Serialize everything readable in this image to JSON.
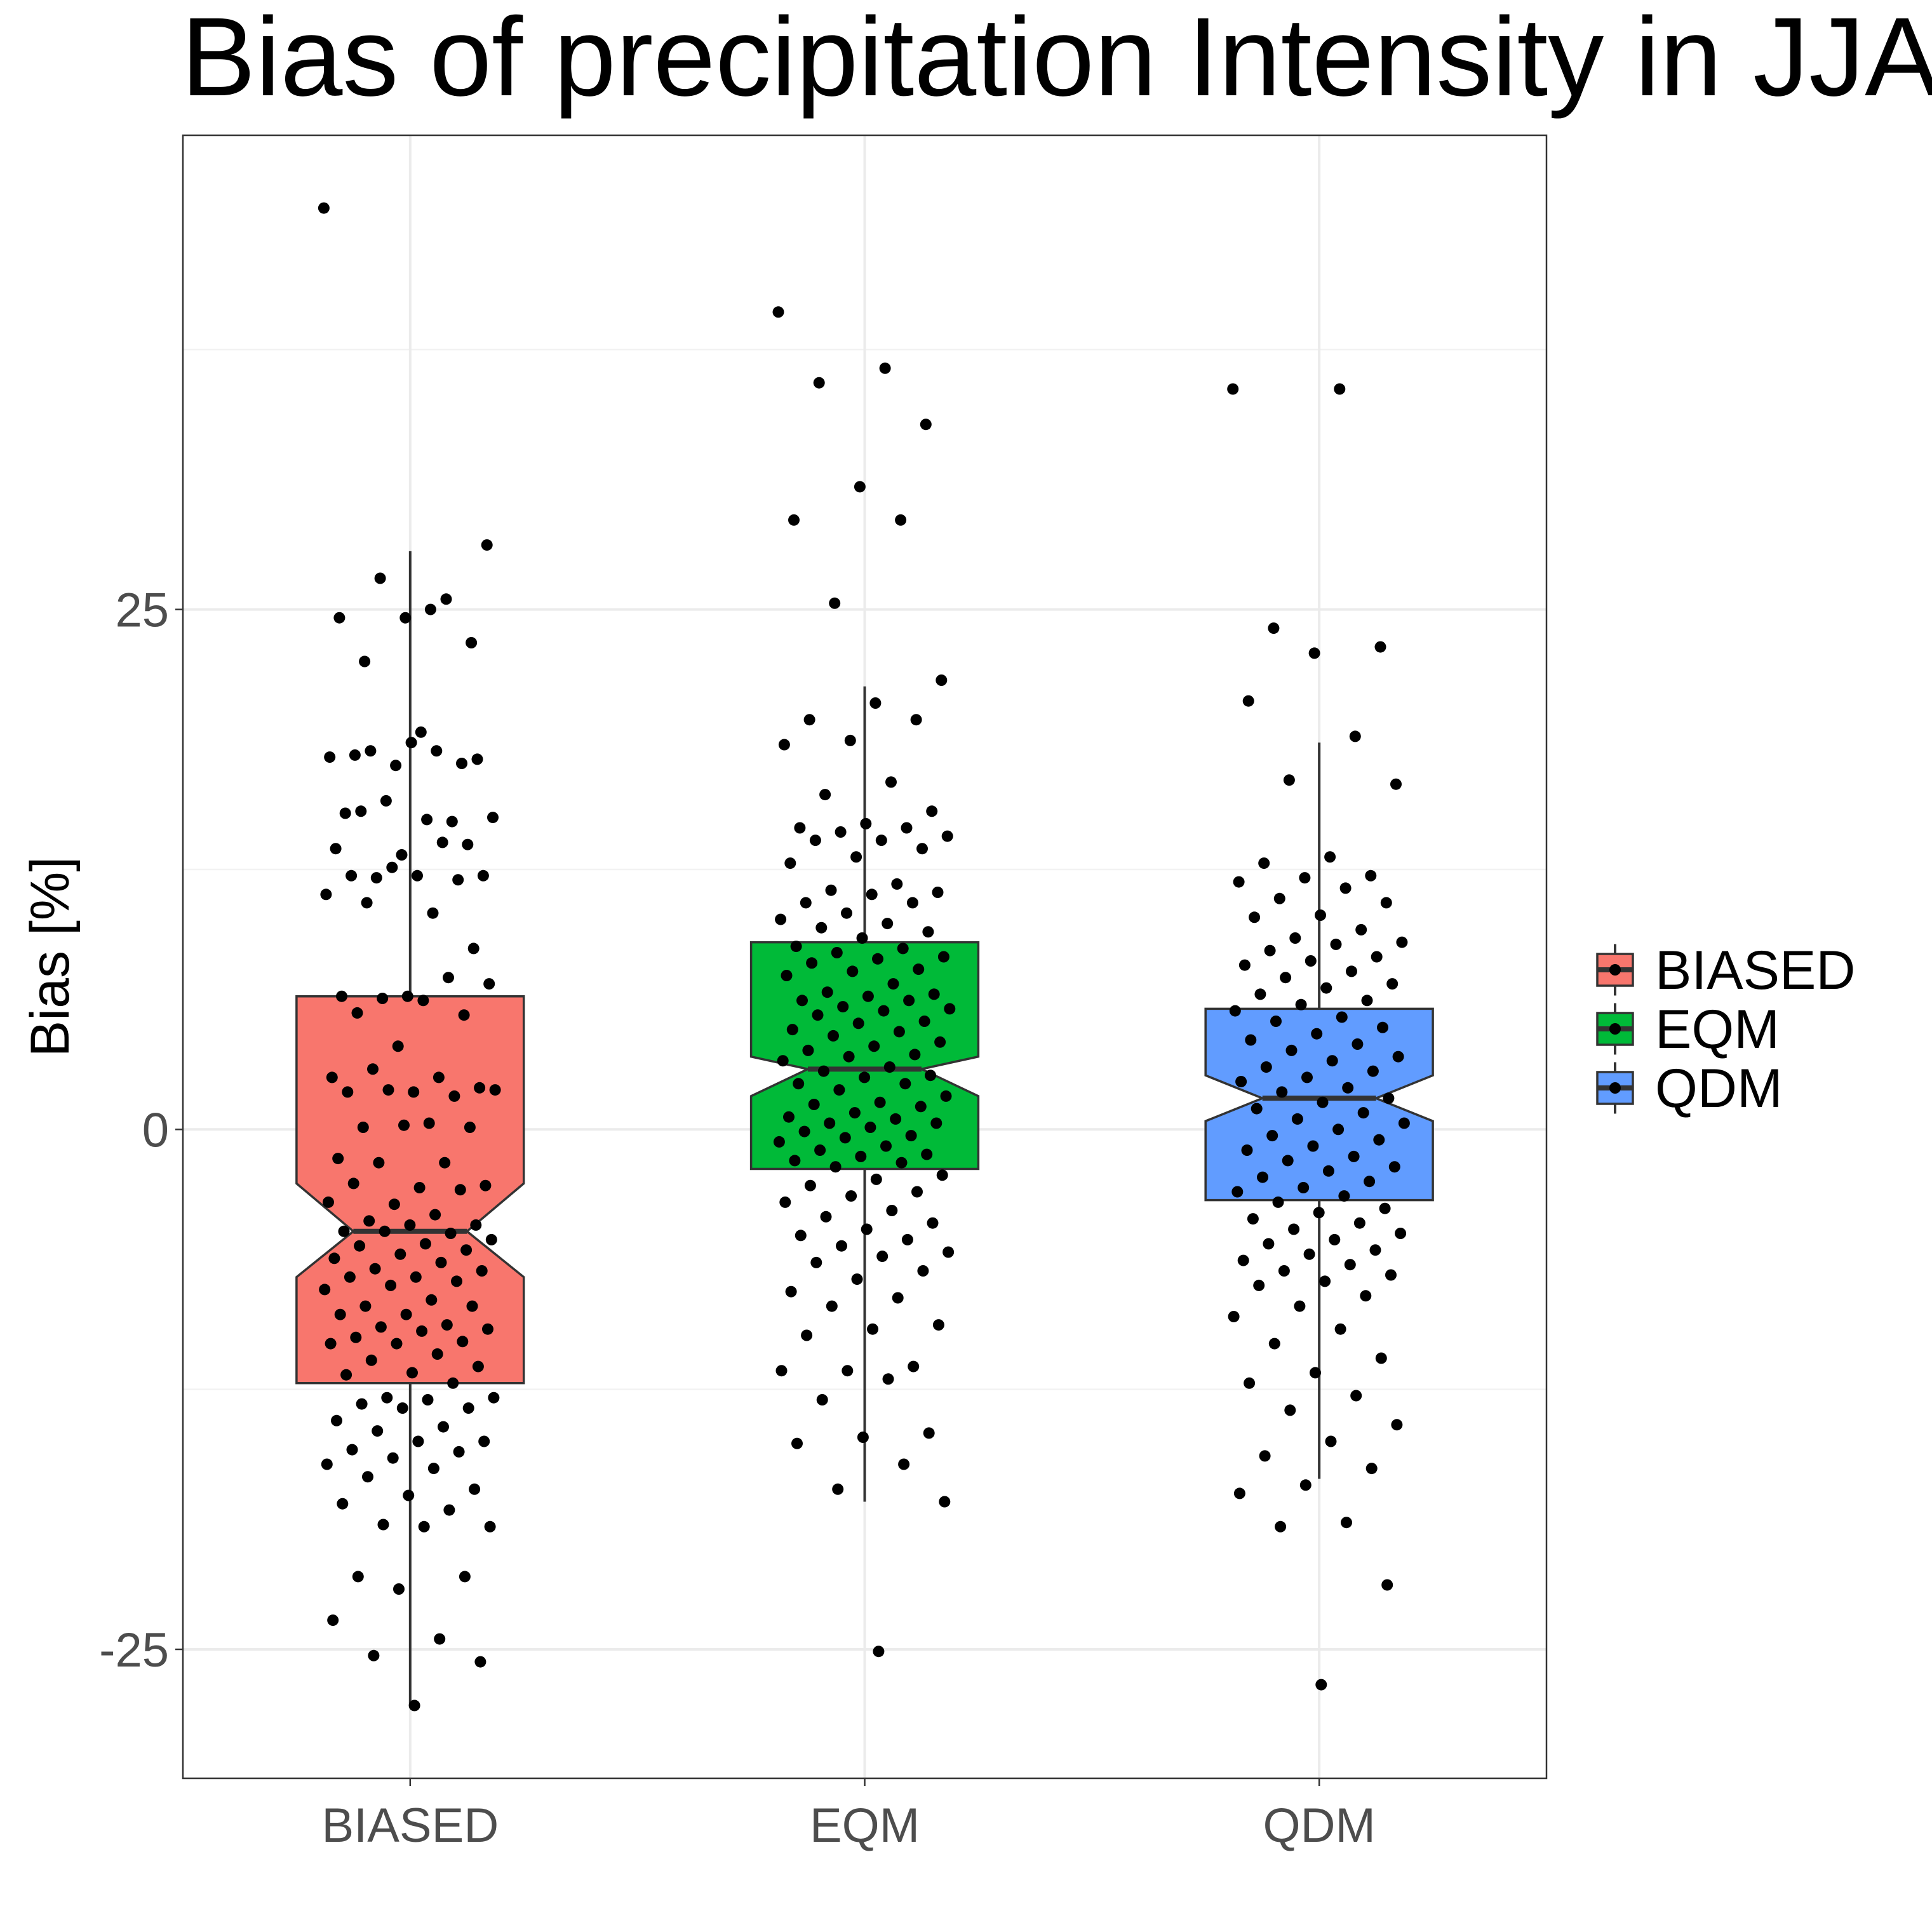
{
  "chart_data": {
    "type": "boxplot",
    "title": "Bias of precipitation Intensity in JJA",
    "xlabel": "",
    "ylabel": "Bias [%]",
    "ylim": [
      -31.2,
      47.8
    ],
    "yticks": [
      -25,
      0,
      25
    ],
    "ytick_labels": [
      "-25",
      "0",
      "25"
    ],
    "categories": [
      "BIASED",
      "EQM",
      "QDM"
    ],
    "notched": true,
    "grid": true,
    "legend": {
      "position": "right",
      "entries": [
        {
          "label": "BIASED",
          "color": "#F8766D"
        },
        {
          "label": "EQM",
          "color": "#00BA38"
        },
        {
          "label": "QDM",
          "color": "#619CFF"
        }
      ]
    },
    "boxes": [
      {
        "name": "BIASED",
        "color": "#F8766D",
        "whisker_low": -27.7,
        "q1": -12.2,
        "notch_low": -7.1,
        "median": -4.9,
        "notch_high": -2.6,
        "q3": 6.4,
        "whisker_high": 27.8,
        "points": [
          44.3,
          25.0,
          22.5,
          23.4,
          24.6,
          24.6,
          25.5,
          26.5,
          28.1,
          19.1,
          18.0,
          17.6,
          17.5,
          17.9,
          18.2,
          18.2,
          17.8,
          18.6,
          15.2,
          14.8,
          15.8,
          15.0,
          14.9,
          15.3,
          13.7,
          13.2,
          13.5,
          13.8,
          12.1,
          12.2,
          12.2,
          12.2,
          12.0,
          12.6,
          11.3,
          10.4,
          10.9,
          8.7,
          6.4,
          6.4,
          7.3,
          6.3,
          7.0,
          6.2,
          5.6,
          5.5,
          4.0,
          2.5,
          2.5,
          2.9,
          2.0,
          1.8,
          1.8,
          1.6,
          1.9,
          1.9,
          0.3,
          0.1,
          0.1,
          0.2,
          -1.4,
          -1.6,
          -1.6,
          -2.7,
          -2.8,
          -2.6,
          -2.9,
          -3.6,
          -3.5,
          -4.1,
          -4.4,
          -4.6,
          -4.6,
          -4.9,
          -5.0,
          -4.9,
          -5.3,
          -5.5,
          -5.6,
          -5.8,
          -6.0,
          -6.2,
          -6.4,
          -6.7,
          -6.8,
          -7.1,
          -7.1,
          -7.3,
          -7.5,
          -7.7,
          -8.2,
          -8.5,
          -8.5,
          -8.9,
          -8.9,
          -9.4,
          -9.5,
          -9.6,
          -9.7,
          -10.0,
          -10.2,
          -10.3,
          -10.3,
          -10.8,
          -11.1,
          -11.4,
          -11.7,
          -11.8,
          -12.2,
          -12.9,
          -12.9,
          -13.0,
          -13.2,
          -13.4,
          -13.4,
          -14.0,
          -14.3,
          -14.5,
          -15.0,
          -15.0,
          -15.4,
          -15.5,
          -15.8,
          -16.1,
          -16.3,
          -16.7,
          -17.3,
          -17.6,
          -18.0,
          -18.3,
          -19.0,
          -19.1,
          -19.1,
          -21.5,
          -21.5,
          -22.1,
          -23.6,
          -24.5,
          -25.3,
          -25.6,
          -27.7
        ]
      },
      {
        "name": "EQM",
        "color": "#00BA38",
        "whisker_low": -17.9,
        "q1": -1.9,
        "notch_low": 1.6,
        "median": 2.9,
        "notch_high": 3.5,
        "q3": 9.0,
        "whisker_high": 21.3,
        "points": [
          39.3,
          36.6,
          35.9,
          33.9,
          30.9,
          29.3,
          29.3,
          25.3,
          21.6,
          20.5,
          19.7,
          19.7,
          18.7,
          18.5,
          16.7,
          16.1,
          15.3,
          14.7,
          14.5,
          14.5,
          14.3,
          14.1,
          13.9,
          13.9,
          13.5,
          13.1,
          12.8,
          11.8,
          11.5,
          11.4,
          11.3,
          10.9,
          10.9,
          10.4,
          10.1,
          9.9,
          9.7,
          9.5,
          9.2,
          8.8,
          8.7,
          8.5,
          8.3,
          8.2,
          8.0,
          7.7,
          7.6,
          7.4,
          7.0,
          6.6,
          6.5,
          6.4,
          6.2,
          6.2,
          5.9,
          5.8,
          5.7,
          5.5,
          5.2,
          5.1,
          4.8,
          4.7,
          4.5,
          4.2,
          4.0,
          3.8,
          3.6,
          3.5,
          3.3,
          3.0,
          2.8,
          2.6,
          2.5,
          2.2,
          2.2,
          1.9,
          1.6,
          1.3,
          1.2,
          1.1,
          0.8,
          0.6,
          0.5,
          0.3,
          0.3,
          0.1,
          -0.1,
          -0.3,
          -0.4,
          -0.6,
          -0.8,
          -1.0,
          -1.2,
          -1.3,
          -1.5,
          -1.6,
          -1.8,
          -2.2,
          -2.4,
          -2.7,
          -3.0,
          -3.2,
          -3.5,
          -3.9,
          -4.2,
          -4.5,
          -4.8,
          -5.1,
          -5.3,
          -5.6,
          -5.9,
          -6.1,
          -6.4,
          -6.8,
          -7.2,
          -7.8,
          -8.1,
          -8.5,
          -9.4,
          -9.6,
          -9.9,
          -11.4,
          -11.6,
          -11.6,
          -12.0,
          -13.0,
          -14.6,
          -14.8,
          -15.1,
          -16.1,
          -17.3,
          -17.9,
          -25.1
        ]
      },
      {
        "name": "QDM",
        "color": "#619CFF",
        "whisker_low": -16.8,
        "q1": -3.4,
        "notch_low": 0.4,
        "median": 1.5,
        "notch_high": 2.6,
        "q3": 5.8,
        "whisker_high": 18.6,
        "points": [
          35.6,
          35.6,
          24.1,
          23.2,
          22.9,
          20.6,
          18.9,
          16.8,
          16.6,
          13.1,
          12.8,
          12.2,
          12.1,
          11.9,
          11.6,
          11.1,
          10.9,
          10.3,
          10.2,
          9.6,
          9.2,
          9.0,
          8.9,
          8.6,
          8.3,
          8.1,
          7.9,
          7.6,
          7.3,
          7.0,
          6.8,
          6.5,
          6.2,
          6.0,
          5.7,
          5.4,
          5.2,
          4.9,
          4.6,
          4.3,
          4.1,
          3.8,
          3.5,
          3.3,
          3.0,
          2.8,
          2.5,
          2.3,
          2.0,
          1.8,
          1.5,
          1.3,
          1.0,
          0.8,
          0.5,
          0.3,
          0.0,
          -0.3,
          -0.5,
          -0.8,
          -1.0,
          -1.3,
          -1.5,
          -1.8,
          -2.0,
          -2.3,
          -2.5,
          -2.8,
          -3.0,
          -3.2,
          -3.5,
          -3.8,
          -4.0,
          -4.3,
          -4.5,
          -4.8,
          -5.0,
          -5.3,
          -5.5,
          -5.8,
          -6.0,
          -6.3,
          -6.5,
          -6.8,
          -7.0,
          -7.3,
          -7.5,
          -8.0,
          -8.5,
          -9.0,
          -9.6,
          -10.3,
          -11.0,
          -11.7,
          -12.2,
          -12.8,
          -13.5,
          -14.2,
          -15.0,
          -15.7,
          -16.3,
          -17.1,
          -17.5,
          -18.9,
          -19.1,
          -21.9,
          -26.7
        ]
      }
    ]
  }
}
